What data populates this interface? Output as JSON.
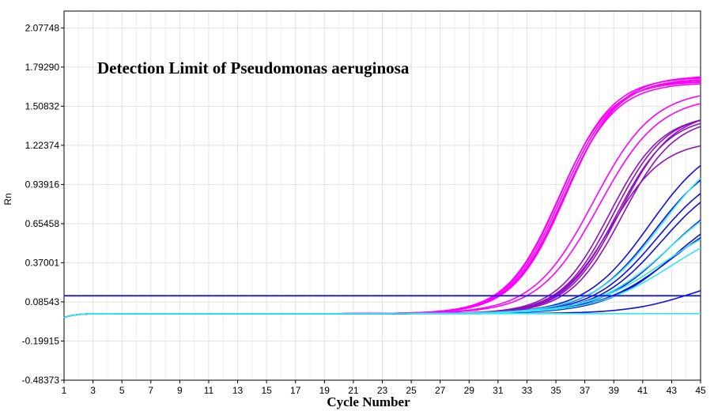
{
  "chart_data": {
    "type": "line",
    "title": "Detection Limit of Pseudomonas aeruginosa",
    "xlabel": "Cycle Number",
    "ylabel": "Rn",
    "xlim": [
      1,
      45
    ],
    "ylim": [
      -0.48373,
      2.2
    ],
    "x_ticks": [
      "1",
      "3",
      "5",
      "7",
      "9",
      "11",
      "13",
      "15",
      "17",
      "19",
      "21",
      "23",
      "25",
      "27",
      "29",
      "31",
      "33",
      "35",
      "37",
      "39",
      "41",
      "43",
      "45"
    ],
    "y_ticks": [
      "-0.48373",
      "-0.19915",
      "0.08543",
      "0.37001",
      "0.65458",
      "0.93916",
      "1.22374",
      "1.50832",
      "1.79290",
      "2.07748"
    ],
    "grid": true,
    "threshold": {
      "value": 0.13,
      "color": "#1a1aff"
    },
    "colors": {
      "magenta": "#ff00ff",
      "purple": "#9010c0",
      "blue": "#1010e0",
      "cyan": "#30e8f0"
    },
    "series": [
      {
        "color_key": "magenta",
        "baseline": 0.0,
        "plateau": 1.72,
        "midpoint": 35.3,
        "slope": 0.55
      },
      {
        "color_key": "magenta",
        "baseline": 0.0,
        "plateau": 1.7,
        "midpoint": 35.4,
        "slope": 0.55
      },
      {
        "color_key": "magenta",
        "baseline": 0.0,
        "plateau": 1.68,
        "midpoint": 35.5,
        "slope": 0.55
      },
      {
        "color_key": "magenta",
        "baseline": 0.0,
        "plateau": 1.71,
        "midpoint": 35.6,
        "slope": 0.55
      },
      {
        "color_key": "magenta",
        "baseline": 0.0,
        "plateau": 1.69,
        "midpoint": 35.2,
        "slope": 0.55
      },
      {
        "color_key": "magenta",
        "baseline": 0.0,
        "plateau": 1.73,
        "midpoint": 35.7,
        "slope": 0.55
      },
      {
        "color_key": "magenta",
        "baseline": 0.0,
        "plateau": 1.63,
        "midpoint": 37.6,
        "slope": 0.48
      },
      {
        "color_key": "magenta",
        "baseline": 0.0,
        "plateau": 1.58,
        "midpoint": 38.0,
        "slope": 0.48
      },
      {
        "color_key": "purple",
        "baseline": 0.0,
        "plateau": 1.45,
        "midpoint": 38.7,
        "slope": 0.55
      },
      {
        "color_key": "purple",
        "baseline": 0.0,
        "plateau": 1.46,
        "midpoint": 39.0,
        "slope": 0.55
      },
      {
        "color_key": "purple",
        "baseline": 0.0,
        "plateau": 1.44,
        "midpoint": 39.2,
        "slope": 0.55
      },
      {
        "color_key": "purple",
        "baseline": 0.0,
        "plateau": 1.47,
        "midpoint": 39.4,
        "slope": 0.55
      },
      {
        "color_key": "purple",
        "baseline": 0.0,
        "plateau": 1.43,
        "midpoint": 39.6,
        "slope": 0.55
      },
      {
        "color_key": "purple",
        "baseline": 0.0,
        "plateau": 1.26,
        "midpoint": 38.8,
        "slope": 0.55
      },
      {
        "color_key": "blue",
        "baseline": 0.0,
        "plateau": 1.3,
        "midpoint": 41.5,
        "slope": 0.45
      },
      {
        "color_key": "blue",
        "baseline": 0.0,
        "plateau": 1.2,
        "midpoint": 41.8,
        "slope": 0.45
      },
      {
        "color_key": "blue",
        "baseline": 0.0,
        "plateau": 1.1,
        "midpoint": 42.0,
        "slope": 0.45
      },
      {
        "color_key": "blue",
        "baseline": 0.0,
        "plateau": 1.05,
        "midpoint": 42.3,
        "slope": 0.45
      },
      {
        "color_key": "blue",
        "baseline": 0.0,
        "plateau": 0.95,
        "midpoint": 42.8,
        "slope": 0.42
      },
      {
        "color_key": "blue",
        "baseline": 0.0,
        "plateau": 0.85,
        "midpoint": 43.2,
        "slope": 0.42
      },
      {
        "color_key": "blue",
        "baseline": 0.0,
        "plateau": 0.8,
        "midpoint": 43.0,
        "slope": 0.4
      },
      {
        "color_key": "blue",
        "baseline": 0.0,
        "plateau": 0.3,
        "midpoint": 44.5,
        "slope": 0.45
      },
      {
        "color_key": "cyan",
        "baseline": 0.0,
        "plateau": 1.3,
        "midpoint": 42.3,
        "slope": 0.42
      },
      {
        "color_key": "cyan",
        "baseline": 0.0,
        "plateau": 0.95,
        "midpoint": 42.8,
        "slope": 0.4
      },
      {
        "color_key": "cyan",
        "baseline": 0.0,
        "plateau": 0.75,
        "midpoint": 42.5,
        "slope": 0.38
      },
      {
        "color_key": "cyan",
        "baseline": 0.0,
        "plateau": 0.7,
        "midpoint": 43.0,
        "slope": 0.38
      },
      {
        "color_key": "cyan",
        "baseline": 0.0,
        "plateau": 0.0,
        "midpoint": 44.0,
        "slope": 0.4
      }
    ]
  }
}
